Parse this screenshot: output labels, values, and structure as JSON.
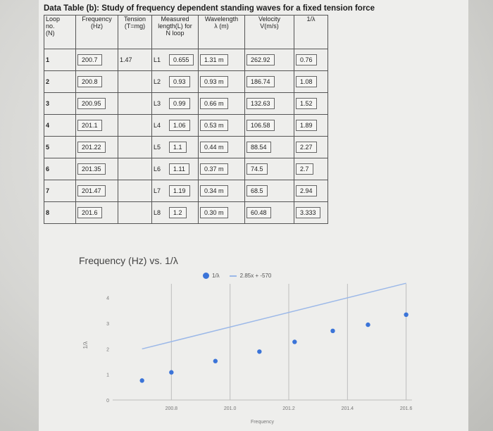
{
  "table": {
    "heading": "Data Table (b): Study of frequency dependent standing waves for a fixed tension force",
    "headers": [
      [
        "Loop",
        "no.",
        "(N)"
      ],
      [
        "Frequency",
        "(Hz)"
      ],
      [
        "Tension",
        "(T=mg)"
      ],
      [
        "Measured",
        "length(L) for",
        "N loop"
      ],
      [
        "Wavelength",
        "λ (m)"
      ],
      [
        "Velocity",
        "V(m/s)"
      ],
      [
        "1/λ"
      ]
    ],
    "rows": [
      {
        "n": "1",
        "freq": "200.7",
        "tension": "1.47",
        "lid": "L1",
        "lval": "0.655",
        "wl": "1.31 m",
        "vel": "262.92",
        "inv": "0.76"
      },
      {
        "n": "2",
        "freq": "200.8",
        "tension": "",
        "lid": "L2",
        "lval": "0.93",
        "wl": "0.93 m",
        "vel": "186.74",
        "inv": "1.08"
      },
      {
        "n": "3",
        "freq": "200.95",
        "tension": "",
        "lid": "L3",
        "lval": "0.99",
        "wl": "0.66 m",
        "vel": "132.63",
        "inv": "1.52"
      },
      {
        "n": "4",
        "freq": "201.1",
        "tension": "",
        "lid": "L4",
        "lval": "1.06",
        "wl": "0.53 m",
        "vel": "106.58",
        "inv": "1.89"
      },
      {
        "n": "5",
        "freq": "201.22",
        "tension": "",
        "lid": "L5",
        "lval": "1.1",
        "wl": "0.44 m",
        "vel": "88.54",
        "inv": "2.27"
      },
      {
        "n": "6",
        "freq": "201.35",
        "tension": "",
        "lid": "L6",
        "lval": "1.11",
        "wl": "0.37 m",
        "vel": "74.5",
        "inv": "2.7"
      },
      {
        "n": "7",
        "freq": "201.47",
        "tension": "",
        "lid": "L7",
        "lval": "1.19",
        "wl": "0.34 m",
        "vel": "68.5",
        "inv": "2.94"
      },
      {
        "n": "8",
        "freq": "201.6",
        "tension": "",
        "lid": "L8",
        "lval": "1.2",
        "wl": "0.30 m",
        "vel": "60.48",
        "inv": "3.333"
      }
    ]
  },
  "chart_data": {
    "type": "scatter",
    "title": "Frequency (Hz) vs. 1/λ",
    "xlabel": "Frequency",
    "ylabel": "1/λ",
    "legend": {
      "points": "1/λ",
      "trendline": "2.85x + -570"
    },
    "legend_position": "top-right",
    "xlim": [
      200.6,
      201.62
    ],
    "ylim": [
      0,
      4.4
    ],
    "x_ticks": [
      "200.8",
      "201.0",
      "201.2",
      "201.4",
      "201.6"
    ],
    "y_ticks": [
      "0",
      "1",
      "2",
      "3",
      "4"
    ],
    "grid": true,
    "x": [
      200.7,
      200.8,
      200.95,
      201.1,
      201.22,
      201.35,
      201.47,
      201.6
    ],
    "y": [
      0.76,
      1.08,
      1.52,
      1.89,
      2.27,
      2.7,
      2.94,
      3.333
    ],
    "trendline": {
      "slope": 2.85,
      "intercept": -570
    },
    "colors": {
      "points": "#3b74d8",
      "trendline": "#9bb8e8",
      "grid": "#bdbdbd"
    }
  }
}
